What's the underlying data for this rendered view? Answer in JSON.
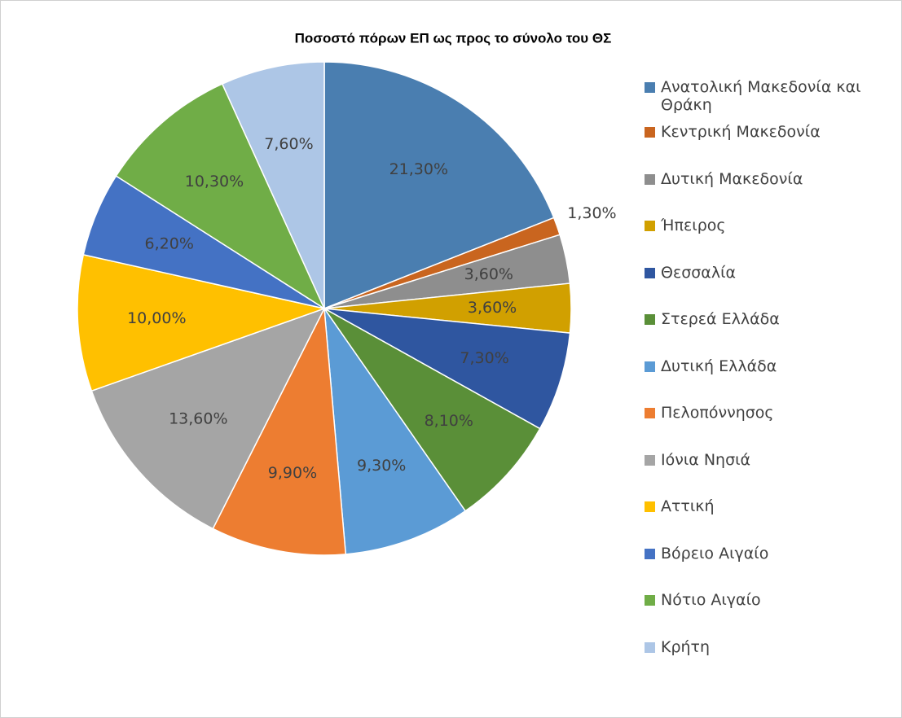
{
  "chart_data": {
    "type": "pie",
    "title": "Ποσοστό πόρων ΕΠ ως προς το σύνολο του ΘΣ",
    "categories": [
      "Ανατολική Μακεδονία και Θράκη",
      "Κεντρική Μακεδονία",
      "Δυτική Μακεδονία",
      "Ήπειρος",
      "Θεσσαλία",
      "Στερεά Ελλάδα",
      "Δυτική Ελλάδα",
      "Πελοπόννησος",
      "Ιόνια Νησιά",
      "Αττική",
      "Βόρειο Αιγαίο",
      "Νότιο Αιγαίο",
      "Κρήτη"
    ],
    "values": [
      21.3,
      1.3,
      3.6,
      3.6,
      7.3,
      8.1,
      9.3,
      9.9,
      13.6,
      10.0,
      6.2,
      10.3,
      7.6
    ],
    "value_labels": [
      "21,30%",
      "1,30%",
      "3,60%",
      "3,60%",
      "7,30%",
      "8,10%",
      "9,30%",
      "9,90%",
      "13,60%",
      "10,00%",
      "6,20%",
      "10,30%",
      "7,60%"
    ],
    "colors": [
      "#4a7eb0",
      "#c9651f",
      "#8e8e8e",
      "#d1a000",
      "#2f56a0",
      "#5a8f38",
      "#5b9bd5",
      "#ed7d31",
      "#a5a5a5",
      "#ffc000",
      "#4472c4",
      "#70ad47",
      "#adc6e6"
    ],
    "legend": "right"
  }
}
